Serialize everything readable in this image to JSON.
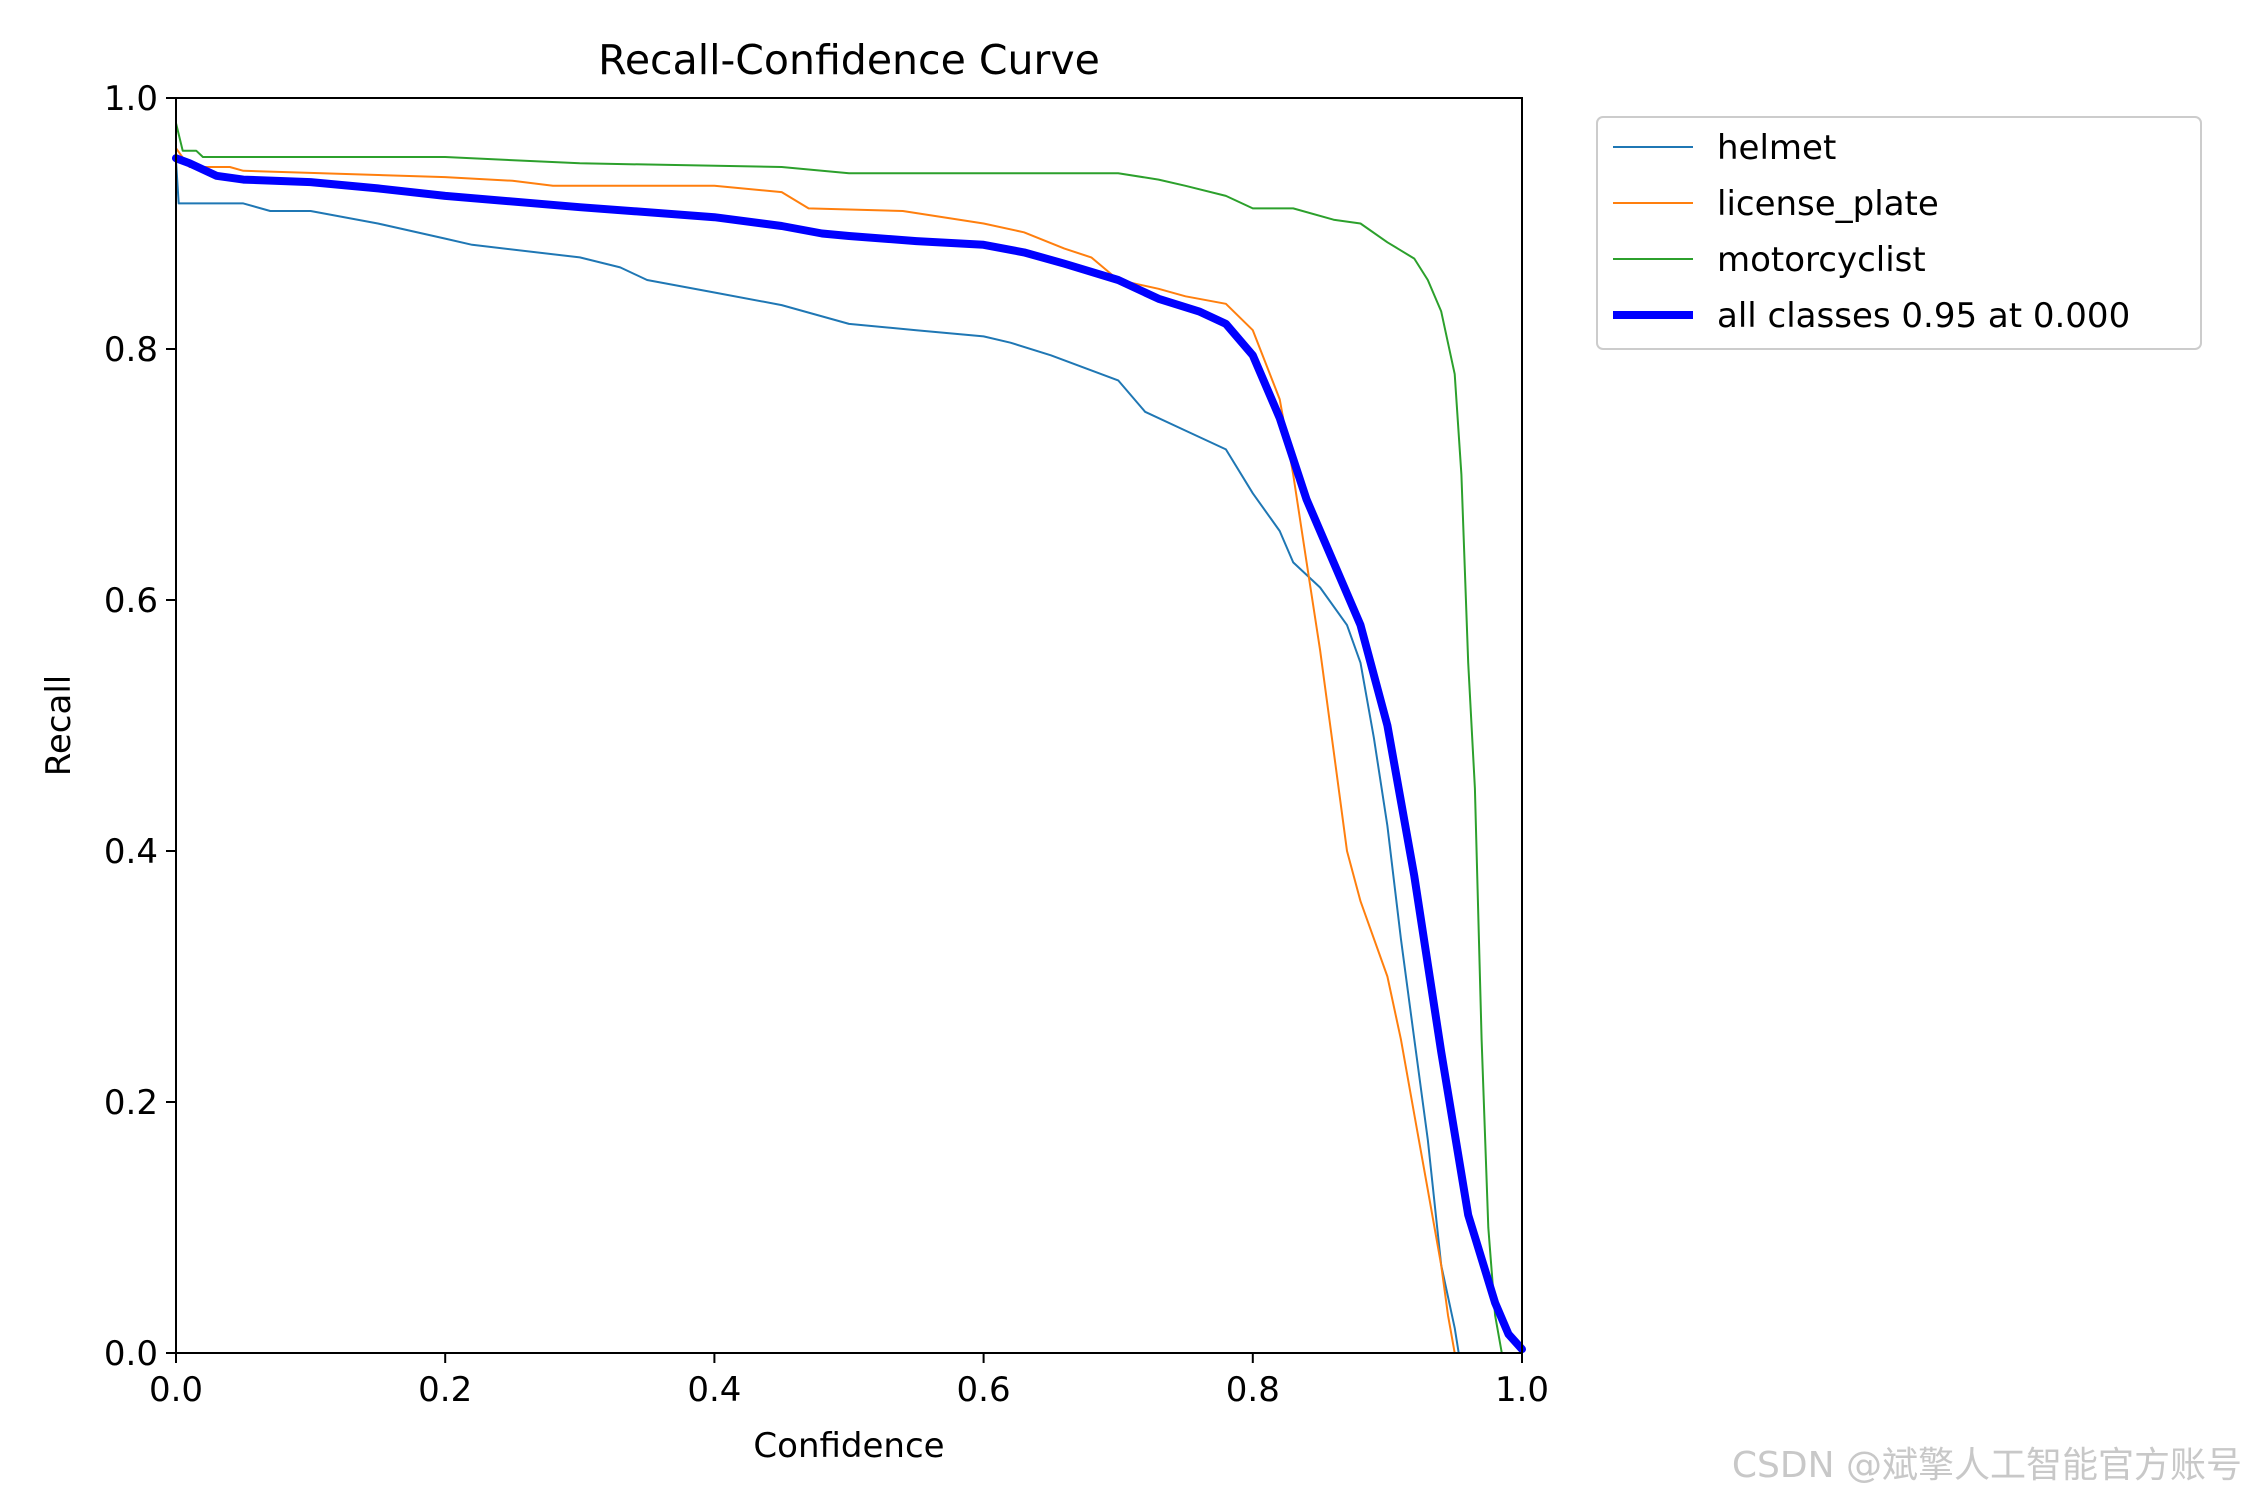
{
  "chart_data": {
    "type": "line",
    "title": "Recall-Confidence Curve",
    "xlabel": "Confidence",
    "ylabel": "Recall",
    "xlim": [
      0,
      1
    ],
    "ylim": [
      0,
      1
    ],
    "xticks": [
      "0.0",
      "0.2",
      "0.4",
      "0.6",
      "0.8",
      "1.0"
    ],
    "yticks": [
      "0.0",
      "0.2",
      "0.4",
      "0.6",
      "0.8",
      "1.0"
    ],
    "grid": false,
    "legend_position": "outside-top-right",
    "series": [
      {
        "name": "helmet",
        "color": "#1f77b4",
        "width": 2,
        "points": [
          [
            0,
            0.95
          ],
          [
            0.002,
            0.916
          ],
          [
            0.05,
            0.916
          ],
          [
            0.07,
            0.91
          ],
          [
            0.1,
            0.91
          ],
          [
            0.15,
            0.9
          ],
          [
            0.2,
            0.888
          ],
          [
            0.22,
            0.883
          ],
          [
            0.3,
            0.873
          ],
          [
            0.33,
            0.865
          ],
          [
            0.35,
            0.855
          ],
          [
            0.4,
            0.845
          ],
          [
            0.45,
            0.835
          ],
          [
            0.5,
            0.82
          ],
          [
            0.55,
            0.815
          ],
          [
            0.6,
            0.81
          ],
          [
            0.62,
            0.805
          ],
          [
            0.65,
            0.795
          ],
          [
            0.7,
            0.775
          ],
          [
            0.72,
            0.75
          ],
          [
            0.75,
            0.735
          ],
          [
            0.78,
            0.72
          ],
          [
            0.8,
            0.685
          ],
          [
            0.82,
            0.655
          ],
          [
            0.83,
            0.63
          ],
          [
            0.85,
            0.61
          ],
          [
            0.87,
            0.58
          ],
          [
            0.88,
            0.55
          ],
          [
            0.89,
            0.49
          ],
          [
            0.9,
            0.42
          ],
          [
            0.91,
            0.33
          ],
          [
            0.92,
            0.25
          ],
          [
            0.93,
            0.17
          ],
          [
            0.94,
            0.07
          ],
          [
            0.95,
            0.02
          ],
          [
            0.953,
            0.0
          ],
          [
            1.0,
            0.0
          ]
        ]
      },
      {
        "name": "license_plate",
        "color": "#ff7f0e",
        "width": 2,
        "points": [
          [
            0,
            0.96
          ],
          [
            0.01,
            0.945
          ],
          [
            0.04,
            0.945
          ],
          [
            0.05,
            0.942
          ],
          [
            0.2,
            0.937
          ],
          [
            0.25,
            0.934
          ],
          [
            0.28,
            0.93
          ],
          [
            0.4,
            0.93
          ],
          [
            0.45,
            0.925
          ],
          [
            0.47,
            0.912
          ],
          [
            0.54,
            0.91
          ],
          [
            0.6,
            0.9
          ],
          [
            0.63,
            0.893
          ],
          [
            0.66,
            0.88
          ],
          [
            0.68,
            0.873
          ],
          [
            0.7,
            0.855
          ],
          [
            0.73,
            0.848
          ],
          [
            0.75,
            0.842
          ],
          [
            0.78,
            0.836
          ],
          [
            0.8,
            0.815
          ],
          [
            0.82,
            0.76
          ],
          [
            0.83,
            0.7
          ],
          [
            0.84,
            0.63
          ],
          [
            0.85,
            0.56
          ],
          [
            0.86,
            0.48
          ],
          [
            0.87,
            0.4
          ],
          [
            0.88,
            0.36
          ],
          [
            0.9,
            0.3
          ],
          [
            0.91,
            0.25
          ],
          [
            0.92,
            0.19
          ],
          [
            0.93,
            0.13
          ],
          [
            0.94,
            0.07
          ],
          [
            0.945,
            0.03
          ],
          [
            0.95,
            0.0
          ],
          [
            1.0,
            0.0
          ]
        ]
      },
      {
        "name": "motorcyclist",
        "color": "#2ca02c",
        "width": 2,
        "points": [
          [
            0,
            0.98
          ],
          [
            0.005,
            0.958
          ],
          [
            0.015,
            0.958
          ],
          [
            0.02,
            0.953
          ],
          [
            0.2,
            0.953
          ],
          [
            0.3,
            0.948
          ],
          [
            0.45,
            0.945
          ],
          [
            0.5,
            0.94
          ],
          [
            0.7,
            0.94
          ],
          [
            0.73,
            0.935
          ],
          [
            0.75,
            0.93
          ],
          [
            0.78,
            0.922
          ],
          [
            0.8,
            0.912
          ],
          [
            0.83,
            0.912
          ],
          [
            0.86,
            0.903
          ],
          [
            0.88,
            0.9
          ],
          [
            0.9,
            0.885
          ],
          [
            0.92,
            0.872
          ],
          [
            0.93,
            0.855
          ],
          [
            0.94,
            0.83
          ],
          [
            0.95,
            0.78
          ],
          [
            0.955,
            0.7
          ],
          [
            0.96,
            0.55
          ],
          [
            0.965,
            0.45
          ],
          [
            0.97,
            0.25
          ],
          [
            0.975,
            0.1
          ],
          [
            0.98,
            0.03
          ],
          [
            0.985,
            0.0
          ],
          [
            1.0,
            0.0
          ]
        ]
      },
      {
        "name": "all classes 0.95 at 0.000",
        "color": "#0000ff",
        "width": 8,
        "points": [
          [
            0,
            0.952
          ],
          [
            0.01,
            0.948
          ],
          [
            0.03,
            0.938
          ],
          [
            0.05,
            0.935
          ],
          [
            0.1,
            0.933
          ],
          [
            0.15,
            0.928
          ],
          [
            0.2,
            0.922
          ],
          [
            0.3,
            0.913
          ],
          [
            0.4,
            0.905
          ],
          [
            0.45,
            0.898
          ],
          [
            0.48,
            0.892
          ],
          [
            0.5,
            0.89
          ],
          [
            0.55,
            0.886
          ],
          [
            0.6,
            0.883
          ],
          [
            0.63,
            0.877
          ],
          [
            0.66,
            0.868
          ],
          [
            0.7,
            0.855
          ],
          [
            0.73,
            0.84
          ],
          [
            0.76,
            0.83
          ],
          [
            0.78,
            0.82
          ],
          [
            0.8,
            0.795
          ],
          [
            0.82,
            0.745
          ],
          [
            0.84,
            0.68
          ],
          [
            0.86,
            0.63
          ],
          [
            0.88,
            0.58
          ],
          [
            0.9,
            0.5
          ],
          [
            0.92,
            0.38
          ],
          [
            0.94,
            0.24
          ],
          [
            0.96,
            0.11
          ],
          [
            0.98,
            0.04
          ],
          [
            0.99,
            0.015
          ],
          [
            1.0,
            0.003
          ]
        ]
      }
    ]
  },
  "watermark": "CSDN @斌擎人工智能官方账号"
}
